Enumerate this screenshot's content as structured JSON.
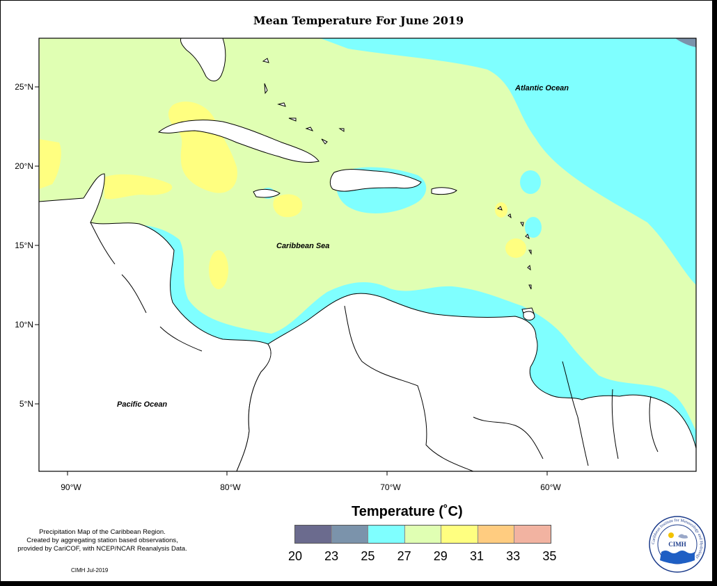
{
  "title": "Mean Temperature For June 2019",
  "axes": {
    "lat_labels": [
      "25°N",
      "20°N",
      "15°N",
      "10°N",
      "5°N"
    ],
    "lon_labels": [
      "90°W",
      "80°W",
      "70°W",
      "60°W"
    ]
  },
  "labels": {
    "atlantic": "Atlantic Ocean",
    "caribbean": "Caribbean Sea",
    "pacific": "Pacific Ocean"
  },
  "legend": {
    "title": "Temperature (˚C)",
    "ticks": [
      "20",
      "23",
      "25",
      "27",
      "29",
      "31",
      "33",
      "35"
    ],
    "colors": [
      "#6b6b8e",
      "#7b93ab",
      "#7fffff",
      "#e0ffb3",
      "#ffff80",
      "#ffcc80",
      "#f2b3a1"
    ]
  },
  "credit": {
    "line1": "Precipitation Map of the Caribbean Region.",
    "line2": "Created by aggregating station based observations,",
    "line3": "provided by CariCOF, with NCEP/NCAR Reanalysis Data.",
    "stamp": "CIMH Jul-2019"
  },
  "logo": {
    "text": "CIMH",
    "ring_text": "Caribbean Institute for Meteorology and Hydrology"
  }
}
